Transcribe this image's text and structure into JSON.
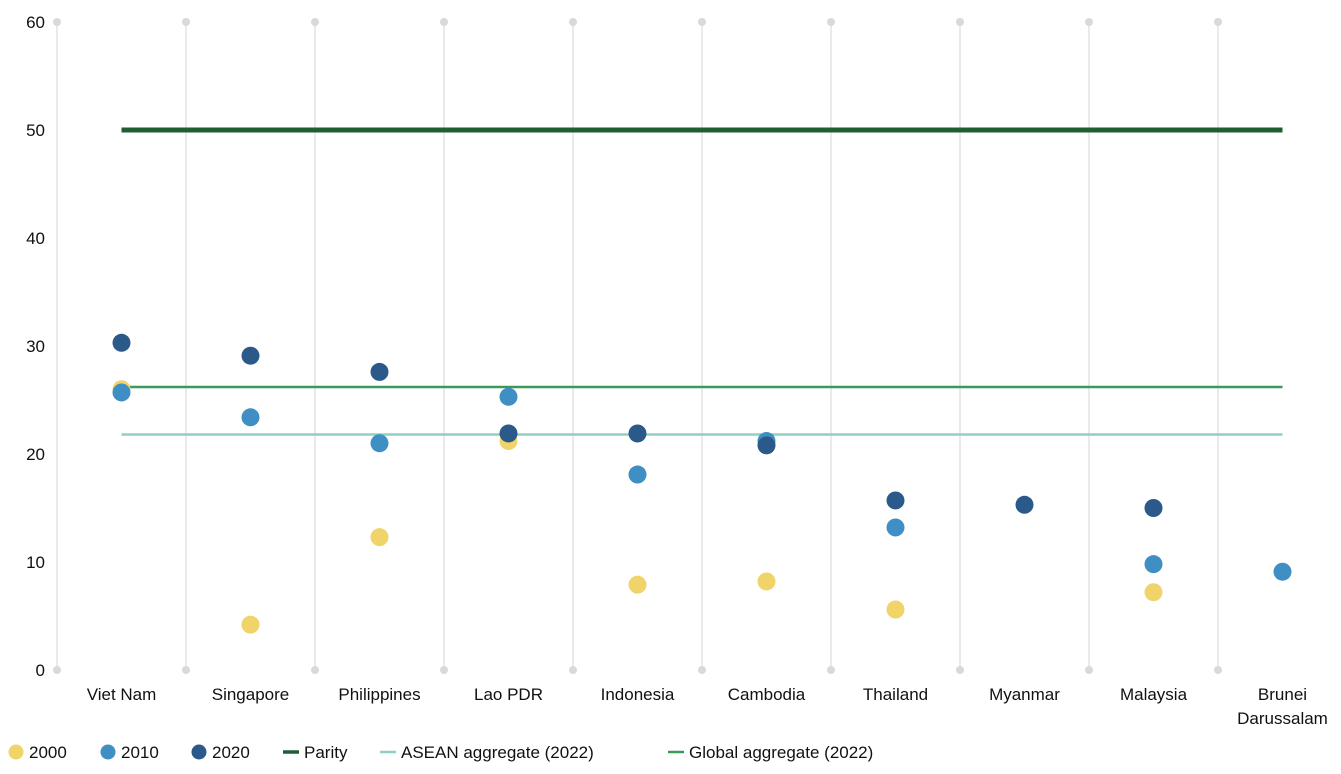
{
  "chart_data": {
    "type": "scatter",
    "title": "",
    "xlabel": "",
    "ylabel": "",
    "categories": [
      "Viet Nam",
      "Singapore",
      "Philippines",
      "Lao PDR",
      "Indonesia",
      "Cambodia",
      "Thailand",
      "Myanmar",
      "Malaysia",
      "Brunei Darussalam"
    ],
    "ylim": [
      0,
      60
    ],
    "yticks": [
      "0",
      "10",
      "20",
      "30",
      "40",
      "50",
      "60"
    ],
    "grid": "vertical",
    "legend_position": "bottom-left",
    "series": [
      {
        "name": "2000",
        "color": "#f0d46a",
        "values": [
          26,
          4.2,
          12.3,
          21.2,
          7.9,
          8.2,
          5.6,
          null,
          7.2,
          null
        ]
      },
      {
        "name": "2010",
        "color": "#3f8fc4",
        "values": [
          25.7,
          23.4,
          21,
          25.3,
          18.1,
          21.2,
          13.2,
          null,
          9.8,
          9.1
        ]
      },
      {
        "name": "2020",
        "color": "#2b5a8a",
        "values": [
          30.3,
          29.1,
          27.6,
          21.9,
          21.9,
          20.8,
          15.7,
          15.3,
          15,
          null
        ]
      }
    ],
    "reference_lines": [
      {
        "name": "Parity",
        "value": 50,
        "color": "#1e5e30",
        "style": "thick"
      },
      {
        "name": "ASEAN aggregate (2022)",
        "value": 21.8,
        "color": "#8fcfc4",
        "style": "thin"
      },
      {
        "name": "Global aggregate (2022)",
        "value": 26.2,
        "color": "#3a9a5a",
        "style": "thin"
      }
    ],
    "legend_order": [
      "2000",
      "2010",
      "2020",
      "Parity",
      "ASEAN aggregate (2022)",
      "Global aggregate (2022)"
    ]
  }
}
